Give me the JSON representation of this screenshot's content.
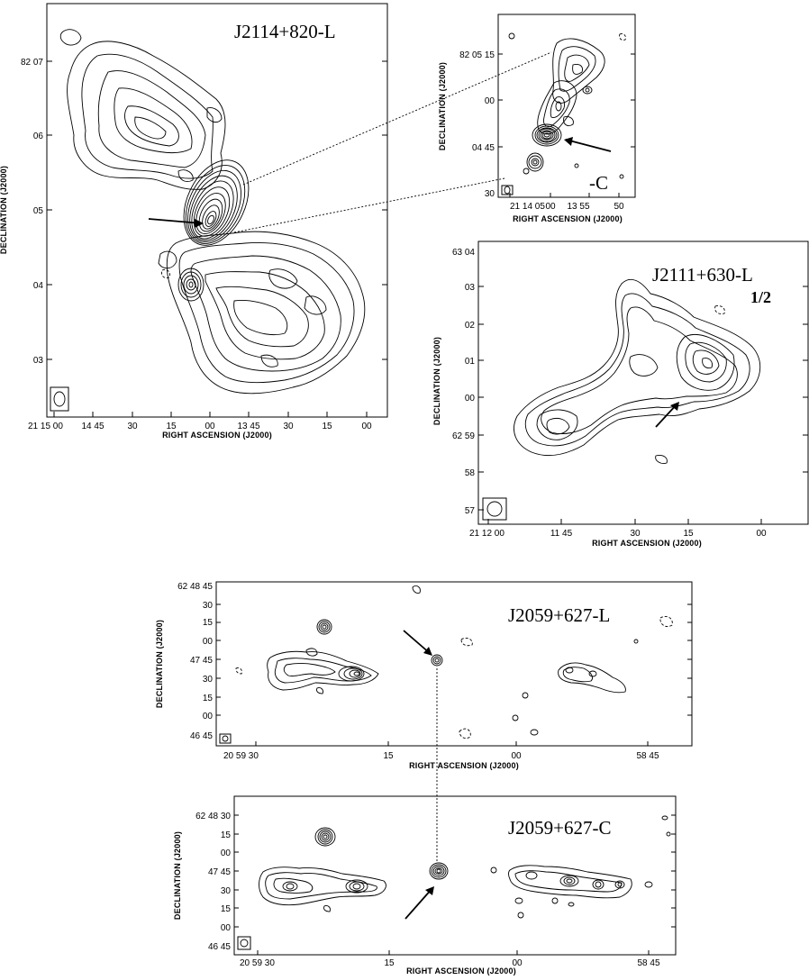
{
  "panels": {
    "p1": {
      "title": "J2114+820-L",
      "xlabel": "RIGHT ASCENSION (J2000)",
      "ylabel": "DECLINATION (J2000)",
      "xticks": [
        "21 15 00",
        "14 45",
        "30",
        "15",
        "00",
        "13 45",
        "30",
        "15",
        "00"
      ],
      "yticks": [
        "82 07",
        "06",
        "05",
        "04",
        "03"
      ]
    },
    "p2": {
      "title": "-C",
      "xlabel": "RIGHT ASCENSION (J2000)",
      "ylabel": "DECLINATION (J2000)",
      "xticks": [
        "21 14 05",
        "00",
        "13 55",
        "50"
      ],
      "yticks": [
        "82 05 15",
        "00",
        "04 45",
        "30"
      ]
    },
    "p3": {
      "title": "J2111+630-L",
      "note": "1/2",
      "xlabel": "RIGHT ASCENSION (J2000)",
      "ylabel": "DECLINATION (J2000)",
      "xticks": [
        "21 12 00",
        "11 45",
        "30",
        "15",
        "00"
      ],
      "yticks": [
        "63 04",
        "03",
        "02",
        "01",
        "00",
        "62 59",
        "58",
        "57"
      ]
    },
    "p4": {
      "title": "J2059+627-L",
      "xlabel": "RIGHT ASCENSION (J2000)",
      "ylabel": "DECLINATION (J2000)",
      "xticks": [
        "20 59 30",
        "15",
        "00",
        "58 45"
      ],
      "yticks": [
        "62 48 45",
        "30",
        "15",
        "00",
        "47 45",
        "30",
        "15",
        "00",
        "46 45"
      ]
    },
    "p5": {
      "title": "J2059+627-C",
      "xlabel": "RIGHT ASCENSION (J2000)",
      "ylabel": "DECLINATION (J2000)",
      "xticks": [
        "20 59 30",
        "15",
        "00",
        "58 45"
      ],
      "yticks": [
        "62 48 30",
        "15",
        "00",
        "47 45",
        "30",
        "15",
        "00",
        "46 45"
      ]
    }
  }
}
